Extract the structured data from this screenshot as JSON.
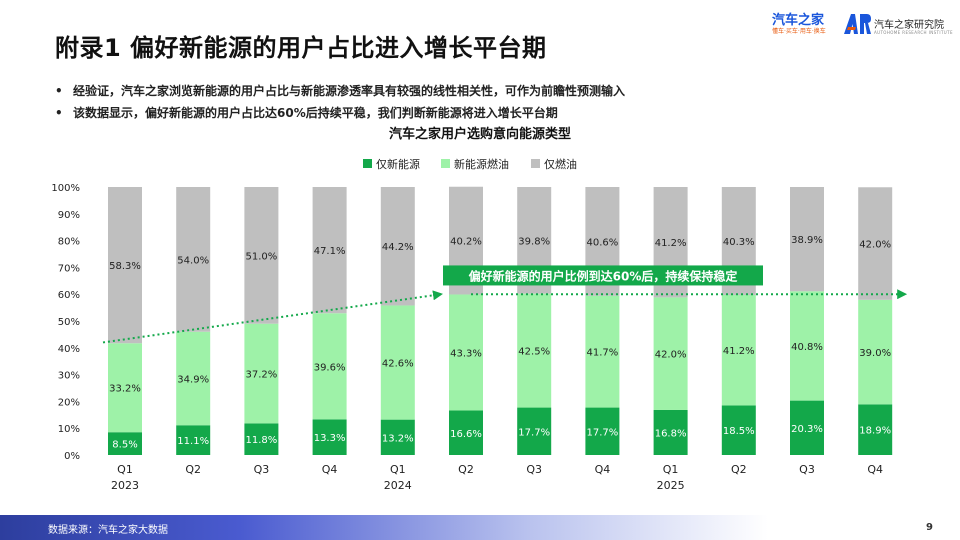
{
  "page": {
    "title": "附录1 偏好新能源的用户占比进入增长平台期",
    "bullets": [
      "经验证，汽车之家浏览新能源的用户占比与新能源渗透率具有较强的线性相关性，可作为前瞻性预测输入",
      "该数据显示，偏好新能源的用户占比达60%后持续平稳，我们判断新能源将进入增长平台期"
    ],
    "bullet_mark": "•",
    "logo_left_brand": "汽车之家",
    "logo_left_tagline": "懂车·买车·用车·换车",
    "logo_right_name": "汽车之家研究院",
    "logo_right_en": "AUTOHOME RESEARCH INSTITUTE",
    "source": "数据来源：汽车之家大数据",
    "page_number": "9",
    "colors": {
      "pure_ev": "#13a84a",
      "nev_ice": "#9ef2a8",
      "ice_only": "#bfbfbf",
      "annotation_bg": "#13a84a",
      "trend": "#13a84a",
      "footer": "#3247b5"
    }
  },
  "chart_data": {
    "type": "bar",
    "stacked": true,
    "title": "汽车之家用户选购意向能源类型",
    "categories": [
      "Q1",
      "Q2",
      "Q3",
      "Q4",
      "Q1",
      "Q2",
      "Q3",
      "Q4",
      "Q1",
      "Q2",
      "Q3",
      "Q4"
    ],
    "year_labels": [
      "2023",
      "",
      "",
      "",
      "2024",
      "",
      "",
      "",
      "2025",
      "",
      "",
      ""
    ],
    "series": [
      {
        "name": "仅新能源",
        "color": "#13a84a",
        "values": [
          8.5,
          11.1,
          11.8,
          13.3,
          13.2,
          16.6,
          17.7,
          17.7,
          16.8,
          18.5,
          20.3,
          18.9
        ]
      },
      {
        "name": "新能源燃油",
        "color": "#9ef2a8",
        "values": [
          33.2,
          34.9,
          37.2,
          39.6,
          42.6,
          43.3,
          42.5,
          41.7,
          42.0,
          41.2,
          40.8,
          39.0
        ]
      },
      {
        "name": "仅燃油",
        "color": "#bfbfbf",
        "values": [
          58.3,
          54.0,
          51.0,
          47.1,
          44.2,
          40.2,
          39.8,
          40.6,
          41.2,
          40.3,
          38.9,
          42.0
        ]
      }
    ],
    "yticks": [
      "0%",
      "10%",
      "20%",
      "30%",
      "40%",
      "50%",
      "60%",
      "70%",
      "80%",
      "90%",
      "100%"
    ],
    "ylim": [
      0,
      100
    ],
    "legend_position": "top-center",
    "annotation": "偏好新能源的用户比例到达60%后，持续保持稳定",
    "trend_line": [
      {
        "category_index": 0,
        "value": 42
      },
      {
        "category_index": 5,
        "value": 60
      },
      {
        "category_index": 11,
        "value": 60
      }
    ]
  }
}
